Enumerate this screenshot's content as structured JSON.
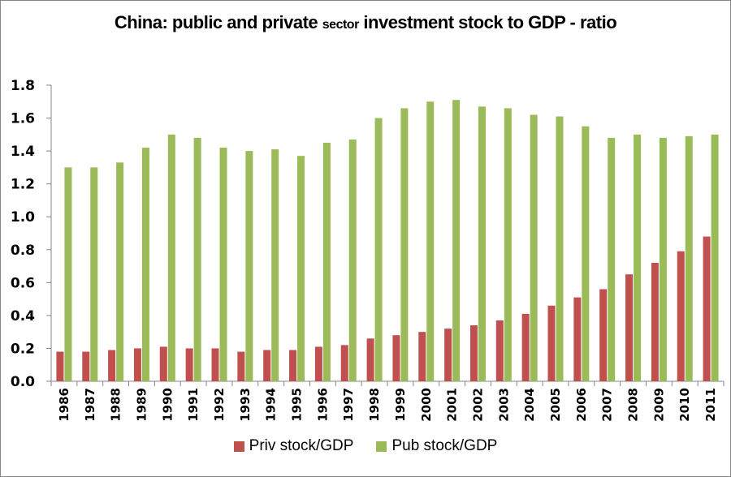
{
  "chart_data": {
    "type": "bar",
    "title_parts": [
      "China: public and private ",
      "sector",
      " investment stock to GDP - ratio"
    ],
    "title": "China: public and private sector investment stock to GDP - ratio",
    "xlabel": "",
    "ylabel": "",
    "ylim": [
      0,
      1.8
    ],
    "yticks": [
      "0.0",
      "0.2",
      "0.4",
      "0.6",
      "0.8",
      "1.0",
      "1.2",
      "1.4",
      "1.6",
      "1.8"
    ],
    "grid": false,
    "legend_position": "bottom",
    "categories": [
      "1986",
      "1987",
      "1988",
      "1989",
      "1990",
      "1991",
      "1992",
      "1993",
      "1994",
      "1995",
      "1996",
      "1997",
      "1998",
      "1999",
      "2000",
      "2001",
      "2002",
      "2003",
      "2004",
      "2005",
      "2006",
      "2007",
      "2008",
      "2009",
      "2010",
      "2011"
    ],
    "series": [
      {
        "name": "Priv stock/GDP",
        "color": "#c0504d",
        "values": [
          0.18,
          0.18,
          0.19,
          0.2,
          0.21,
          0.2,
          0.2,
          0.18,
          0.19,
          0.19,
          0.21,
          0.22,
          0.26,
          0.28,
          0.3,
          0.32,
          0.34,
          0.37,
          0.41,
          0.46,
          0.51,
          0.56,
          0.65,
          0.72,
          0.79,
          0.88
        ]
      },
      {
        "name": "Pub stock/GDP",
        "color": "#9bbb59",
        "values": [
          1.3,
          1.3,
          1.33,
          1.42,
          1.5,
          1.48,
          1.42,
          1.4,
          1.41,
          1.37,
          1.45,
          1.47,
          1.6,
          1.66,
          1.7,
          1.71,
          1.67,
          1.66,
          1.62,
          1.61,
          1.55,
          1.48,
          1.5,
          1.48,
          1.49,
          1.5
        ]
      }
    ]
  }
}
